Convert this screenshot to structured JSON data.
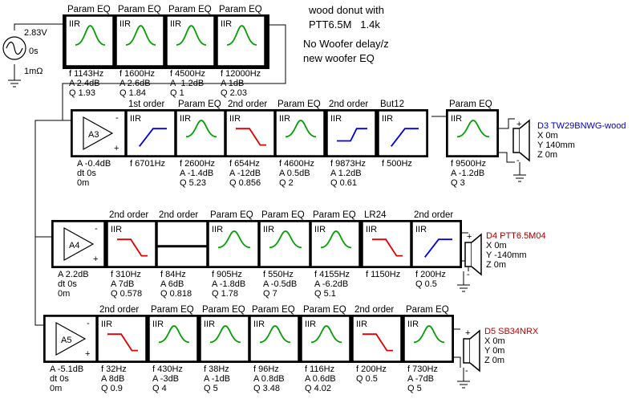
{
  "title_note": {
    "line1": "wood donut with",
    "line2": "PTT6.5M   1.4k",
    "line3": "No Woofer delay/z",
    "line4": "new woofer EQ"
  },
  "source": {
    "voltage": "2.83V",
    "delay": "0s",
    "resistance": "1mΩ"
  },
  "colors": {
    "peak": "#00a000",
    "lowpass": "#e00000",
    "highpass": "#0000e0",
    "tweeter_label": "#0000c0",
    "woofer_label": "#a00000",
    "d5_label": "#c00000"
  },
  "top_chain": [
    {
      "header": "Param EQ",
      "tag": "IIR",
      "curve": "peak",
      "lines": [
        "f    1143Hz",
        "A  2.4dB",
        "Q  1.93"
      ]
    },
    {
      "header": "Param EQ",
      "tag": "IIR",
      "curve": "peak",
      "lines": [
        "f    1600Hz",
        "A  2.6dB",
        "Q  1.84"
      ]
    },
    {
      "header": "Param EQ",
      "tag": "IIR",
      "curve": "peak",
      "lines": [
        "f    4500Hz",
        "A  -1.2dB",
        "Q  1"
      ]
    },
    {
      "header": "Param EQ",
      "tag": "IIR",
      "curve": "peak",
      "lines": [
        "f    12000Hz",
        "A  1dB",
        "Q  2.03"
      ]
    }
  ],
  "rows": [
    {
      "amp": {
        "name": "A3",
        "lines": [
          "A  -0.4dB",
          "dt 0s",
          "    0m"
        ]
      },
      "blocks": [
        {
          "header": "1st order",
          "tag": "IIR",
          "curve": "highpass",
          "lines": [
            "f    6701Hz"
          ]
        },
        {
          "header": "Param EQ",
          "tag": "IIR",
          "curve": "peak",
          "lines": [
            "f    2600Hz",
            "A  -1.4dB",
            "Q  5.23"
          ]
        },
        {
          "header": "2nd order",
          "tag": "IIR",
          "curve": "lowpass",
          "lines": [
            "f    654Hz",
            "A  -12dB",
            "Q  0.856"
          ]
        },
        {
          "header": "Param EQ",
          "tag": "IIR",
          "curve": "peak",
          "lines": [
            "f    4600Hz",
            "A  0.5dB",
            "Q  2"
          ]
        },
        {
          "header": "2nd order",
          "tag": "IIR",
          "curve": "shelf",
          "lines": [
            "f    9873Hz",
            "A  1.2dB",
            "Q  0.61"
          ]
        },
        {
          "header": "But12",
          "tag": "IIR",
          "curve": "highpass",
          "lines": [
            "f    500Hz"
          ]
        },
        {
          "header": "Param EQ",
          "tag": "IIR",
          "curve": "peak",
          "lines": [
            "f    9500Hz",
            "A  -1.2dB",
            "Q  3"
          ]
        }
      ],
      "speaker": {
        "name": "D3 TW29BNWG-wood",
        "lines": [
          "X 0m",
          "Y 140mm",
          "Z 0m"
        ]
      }
    },
    {
      "amp": {
        "name": "A4",
        "lines": [
          "A  2.2dB",
          "dt 0s",
          "    0m"
        ]
      },
      "blocks": [
        {
          "header": "2nd order",
          "tag": "IIR",
          "curve": "lowpass",
          "lines": [
            "f    310Hz",
            "A  7dB",
            "Q  0.578"
          ]
        },
        {
          "header": "2nd order",
          "tag": "",
          "curve": "flat",
          "lines": [
            "f    84Hz",
            "A  6dB",
            "Q  0.818"
          ]
        },
        {
          "header": "Param EQ",
          "tag": "IIR",
          "curve": "peak",
          "lines": [
            "f    905Hz",
            "A  -1.8dB",
            "Q  1.78"
          ]
        },
        {
          "header": "Param EQ",
          "tag": "IIR",
          "curve": "peak",
          "lines": [
            "f    550Hz",
            "A  -0.5dB",
            "Q  7"
          ]
        },
        {
          "header": "Param EQ",
          "tag": "IIR",
          "curve": "peak",
          "lines": [
            "f    4155Hz",
            "A  -6.2dB",
            "Q  5.1"
          ]
        },
        {
          "header": "LR24",
          "tag": "IIR",
          "curve": "lowpass",
          "lines": [
            "f    1150Hz"
          ]
        },
        {
          "header": "2nd order",
          "tag": "IIR",
          "curve": "highpass",
          "lines": [
            "f    200Hz",
            "Q  0.5"
          ]
        }
      ],
      "speaker": {
        "name": "D4 PTT6.5M04",
        "lines": [
          "X 0m",
          "Y -140mm",
          "Z 0m"
        ]
      }
    },
    {
      "amp": {
        "name": "A5",
        "lines": [
          "A  -5.1dB",
          "dt 0s",
          "    0m"
        ]
      },
      "blocks": [
        {
          "header": "2nd order",
          "tag": "IIR",
          "curve": "lowpass",
          "lines": [
            "f    32Hz",
            "A  8dB",
            "Q  0.9"
          ]
        },
        {
          "header": "Param EQ",
          "tag": "IIR",
          "curve": "peak",
          "lines": [
            "f    430Hz",
            "A  -3dB",
            "Q  4"
          ]
        },
        {
          "header": "Param EQ",
          "tag": "IIR",
          "curve": "peak",
          "lines": [
            "f    38Hz",
            "A  -1dB",
            "Q  5"
          ]
        },
        {
          "header": "Param EQ",
          "tag": "IIR",
          "curve": "peak",
          "lines": [
            "f    96Hz",
            "A  0.8dB",
            "Q  3.48"
          ]
        },
        {
          "header": "Param EQ",
          "tag": "IIR",
          "curve": "peak",
          "lines": [
            "f    116Hz",
            "A  0.6dB",
            "Q  4.02"
          ]
        },
        {
          "header": "2nd order",
          "tag": "IIR",
          "curve": "lowpass",
          "lines": [
            "f    200Hz",
            "Q  0.5"
          ]
        },
        {
          "header": "Param EQ",
          "tag": "IIR",
          "curve": "peak",
          "lines": [
            "f    730Hz",
            "A  -7dB",
            "Q  5"
          ]
        }
      ],
      "speaker": {
        "name": "D5 SB34NRX",
        "lines": [
          "X 0m",
          "Y 0m",
          "Z 0m"
        ]
      }
    }
  ]
}
